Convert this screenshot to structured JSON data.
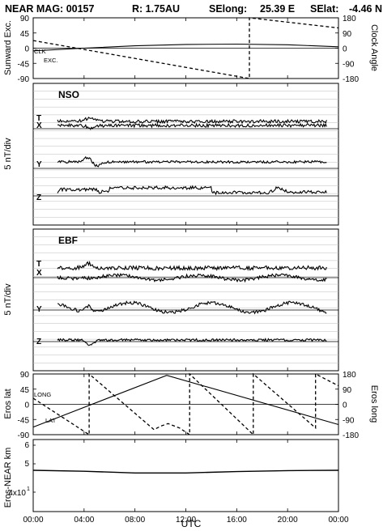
{
  "header": {
    "mission": "NEAR MAG: 00157",
    "range": "R: 1.75AU",
    "selong_label": "SElong:",
    "selong_value": "25.39 E",
    "selat_label": "SElat:",
    "selat_value": "-4.46 N"
  },
  "x_axis": {
    "label": "UTC",
    "ticks": [
      "00:00",
      "04:00",
      "08:00",
      "12:00",
      "16:00",
      "20:00",
      "00:00"
    ],
    "range_hours": [
      0,
      24
    ]
  },
  "chart_data": [
    {
      "type": "line",
      "panel": "sunward",
      "ylabel_left": "Sunward Exc.",
      "ylabel_right": "Clock Angle",
      "yticks_left": [
        "90",
        "45",
        "0",
        "-45",
        "-90"
      ],
      "yticks_right": [
        "180",
        "90",
        "0",
        "-90",
        "-180"
      ],
      "ylim_left": [
        -90,
        90
      ],
      "ylim_right": [
        -180,
        180
      ],
      "annotations": [
        "CLK",
        "EXC."
      ],
      "series": [
        {
          "name": "CLK",
          "axis": "right",
          "style": "dashed",
          "x": [
            0,
            17,
            17,
            24
          ],
          "y": [
            45,
            -180,
            180,
            120
          ]
        },
        {
          "name": "EXC.",
          "axis": "left",
          "style": "solid",
          "x": [
            0,
            4,
            8,
            12,
            16,
            20,
            24
          ],
          "y": [
            -8,
            0,
            7,
            11,
            12,
            10,
            4
          ]
        }
      ]
    },
    {
      "type": "line",
      "panel": "NSO",
      "title": "NSO",
      "ylabel": "5 nT/div",
      "components": [
        "T",
        "X",
        "Y",
        "Z"
      ]
    },
    {
      "type": "line",
      "panel": "EBF",
      "title": "EBF",
      "ylabel": "5 nT/div",
      "components": [
        "T",
        "X",
        "Y",
        "Z"
      ]
    },
    {
      "type": "line",
      "panel": "eros",
      "ylabel_left": "Eros lat",
      "ylabel_right": "Eros long",
      "yticks_left": [
        "90",
        "45",
        "0",
        "-45",
        "-90"
      ],
      "yticks_right": [
        "180",
        "90",
        "0",
        "-90",
        "-180"
      ],
      "ylim_left": [
        -90,
        90
      ],
      "ylim_right": [
        -180,
        180
      ],
      "annotations": [
        "LONG",
        "LAT"
      ],
      "series": [
        {
          "name": "LONG",
          "axis": "right",
          "style": "solid",
          "x": [
            0,
            10.5,
            24
          ],
          "y": [
            -135,
            172,
            -120
          ]
        },
        {
          "name": "LAT",
          "axis": "left",
          "style": "dashed",
          "x": [
            0,
            4.4,
            4.4,
            9.5,
            10,
            10.6,
            11.5,
            12.3,
            12.3,
            17.3,
            17.3,
            22.2,
            22.2,
            24
          ],
          "y": [
            18,
            -90,
            90,
            -75,
            -65,
            -57,
            -70,
            -90,
            90,
            -90,
            90,
            -70,
            90,
            55
          ]
        }
      ]
    },
    {
      "type": "line",
      "panel": "distance",
      "ylabel": "Eros-NEAR km",
      "yticks": [
        "6",
        "5",
        "4x10"
      ],
      "ytick_superscript": "1",
      "ylim": [
        40,
        62
      ],
      "series": [
        {
          "x": [
            0,
            4,
            8,
            12,
            16,
            20,
            24
          ],
          "y": [
            52.6,
            52.3,
            51.8,
            51.8,
            52.2,
            52.5,
            52.6
          ]
        }
      ]
    }
  ]
}
